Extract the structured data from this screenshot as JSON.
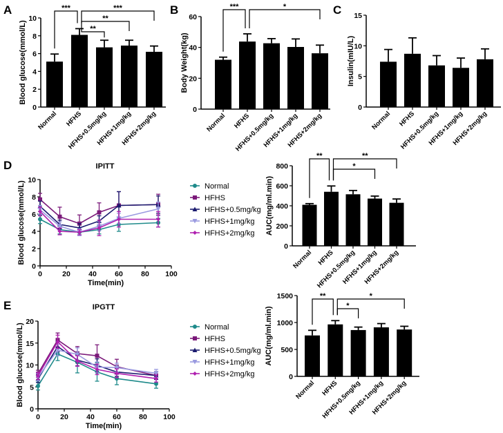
{
  "chart_data": [
    {
      "panel": "A",
      "type": "bar",
      "ylabel": "Blood glucose(mmol/L)",
      "ylim": [
        0,
        10
      ],
      "yticks": [
        0,
        2,
        4,
        6,
        8,
        10
      ],
      "categories": [
        "Normal",
        "HFHS",
        "HFHS+0.5mg/kg",
        "HFHS+1mg/kg",
        "HFHS+2mg/kg"
      ],
      "values": [
        5.1,
        8.1,
        6.7,
        6.9,
        6.2
      ],
      "errors": [
        0.85,
        0.7,
        0.8,
        0.6,
        0.65
      ],
      "significance": [
        {
          "from": 0,
          "to": 1,
          "label": "***"
        },
        {
          "from": 1,
          "to": 2,
          "label": "**"
        },
        {
          "from": 1,
          "to": 3,
          "label": "**"
        },
        {
          "from": 1,
          "to": 4,
          "label": "***"
        }
      ]
    },
    {
      "panel": "B",
      "type": "bar",
      "ylabel": "Body Weight(kg)",
      "ylim": [
        0,
        60
      ],
      "yticks": [
        0,
        20,
        40,
        60
      ],
      "categories": [
        "Normal",
        "HFHS",
        "HFHS+0.5mg/kg",
        "HFHS+1mg/kg",
        "HFHS+2mg/kg"
      ],
      "values": [
        32,
        43.8,
        42.7,
        40.3,
        36.2
      ],
      "errors": [
        1.7,
        5,
        3,
        5.2,
        5.3
      ],
      "significance": [
        {
          "from": 0,
          "to": 1,
          "label": "***"
        },
        {
          "from": 1,
          "to": 4,
          "label": "*"
        }
      ]
    },
    {
      "panel": "C",
      "type": "bar",
      "ylabel": "Insulin(mIU/L)",
      "ylim": [
        0,
        15
      ],
      "yticks": [
        0,
        5,
        10,
        15
      ],
      "categories": [
        "Normal",
        "HFHS",
        "HFHS+0.5mg/kg",
        "HFHS+1mg/kg",
        "HFHS+2mg/kg"
      ],
      "values": [
        7.4,
        8.7,
        6.8,
        6.4,
        7.8
      ],
      "errors": [
        2,
        2.6,
        1.6,
        1.6,
        1.7
      ],
      "significance": []
    },
    {
      "panel": "D",
      "type": "line",
      "title": "IPITT",
      "xlabel": "Time(min)",
      "ylabel": "Blood glucose(mmol/L)",
      "xlim": [
        0,
        100
      ],
      "xticks": [
        0,
        20,
        40,
        60,
        80,
        100
      ],
      "ylim": [
        0,
        10
      ],
      "yticks": [
        0,
        2,
        4,
        6,
        8,
        10
      ],
      "x": [
        0,
        15,
        30,
        45,
        60,
        90
      ],
      "legend": "right",
      "series": [
        {
          "name": "Normal",
          "color": "#1e8a8a",
          "marker": "circle",
          "values": [
            5.4,
            4.2,
            3.9,
            4.2,
            4.8,
            5.0
          ],
          "errors": [
            0.5,
            0.5,
            0.3,
            0.5,
            0.8,
            0.5
          ]
        },
        {
          "name": "HFHS",
          "color": "#7b1a7a",
          "marker": "square",
          "values": [
            7.7,
            5.7,
            4.9,
            6.2,
            7.0,
            7.1
          ],
          "errors": [
            0.7,
            1.1,
            1.0,
            1.1,
            1.6,
            1.2
          ]
        },
        {
          "name": "HFHS+0.5mg/kg",
          "color": "#1a1a6e",
          "marker": "triangle-up",
          "values": [
            6.9,
            4.8,
            4.4,
            5.2,
            7.0,
            7.1
          ],
          "errors": [
            0.6,
            0.5,
            0.5,
            0.6,
            1.6,
            1.0
          ]
        },
        {
          "name": "HFHS+1mg/kg",
          "color": "#9a9ae0",
          "marker": "triangle-down",
          "values": [
            6.5,
            4.6,
            3.9,
            4.6,
            5.5,
            6.6
          ],
          "errors": [
            0.5,
            0.5,
            0.4,
            0.5,
            0.6,
            0.8
          ]
        },
        {
          "name": "HFHS+2mg/kg",
          "color": "#b020b0",
          "marker": "diamond",
          "values": [
            6.3,
            4.0,
            3.9,
            4.4,
            5.4,
            5.4
          ],
          "errors": [
            0.5,
            0.4,
            0.3,
            0.9,
            0.9,
            0.9
          ]
        }
      ]
    },
    {
      "panel": "",
      "type": "bar",
      "ylabel": "AUC(mg/ml.min)",
      "ylim": [
        0,
        800
      ],
      "yticks": [
        0,
        200,
        400,
        600,
        800
      ],
      "categories": [
        "Normal",
        "HFHS",
        "HFHS+0.5mg/kg",
        "HFHS+1mg/kg",
        "HFHS+2mg/kg"
      ],
      "values": [
        410,
        540,
        515,
        472,
        430
      ],
      "errors": [
        12,
        58,
        38,
        25,
        38
      ],
      "significance": [
        {
          "from": 0,
          "to": 1,
          "label": "**"
        },
        {
          "from": 1,
          "to": 3,
          "label": "*"
        },
        {
          "from": 1,
          "to": 4,
          "label": "**"
        }
      ]
    },
    {
      "panel": "E",
      "type": "line",
      "title": "IPGTT",
      "xlabel": "Time(min)",
      "ylabel": "Blood glucose(mmol/L)",
      "xlim": [
        0,
        100
      ],
      "xticks": [
        0,
        20,
        40,
        60,
        80,
        100
      ],
      "ylim": [
        0,
        20
      ],
      "yticks": [
        0,
        5,
        10,
        15,
        20
      ],
      "x": [
        0,
        15,
        30,
        45,
        60,
        90
      ],
      "legend": "right",
      "series": [
        {
          "name": "Normal",
          "color": "#1e8a8a",
          "marker": "circle",
          "values": [
            5.2,
            12.5,
            10.6,
            8.4,
            6.9,
            5.7
          ],
          "errors": [
            0.9,
            1.5,
            2.4,
            2.1,
            1.4,
            1.0
          ]
        },
        {
          "name": "HFHS",
          "color": "#7b1a7a",
          "marker": "square",
          "values": [
            8.0,
            15.7,
            12.6,
            12.1,
            9.6,
            7.6
          ],
          "errors": [
            0.8,
            1.6,
            1.6,
            2.5,
            1.7,
            0.8
          ]
        },
        {
          "name": "HFHS+0.5mg/kg",
          "color": "#1a1a6e",
          "marker": "triangle-up",
          "values": [
            6.8,
            14.2,
            11.1,
            9.9,
            8.4,
            7.6
          ],
          "errors": [
            0.8,
            1.2,
            1.3,
            1.5,
            1.0,
            0.9
          ]
        },
        {
          "name": "HFHS+1mg/kg",
          "color": "#9a9ae0",
          "marker": "triangle-down",
          "values": [
            7.2,
            13.4,
            12.4,
            9.5,
            9.4,
            8.1
          ],
          "errors": [
            0.8,
            1.3,
            1.5,
            1.2,
            1.0,
            0.9
          ]
        },
        {
          "name": "HFHS+2mg/kg",
          "color": "#b020b0",
          "marker": "diamond",
          "values": [
            7.5,
            15.3,
            10.9,
            9.0,
            8.1,
            6.9
          ],
          "errors": [
            0.8,
            1.5,
            1.2,
            1.2,
            1.0,
            0.8
          ]
        }
      ]
    },
    {
      "panel": "",
      "type": "bar",
      "ylabel": "AUC(mg/ml.min)",
      "ylim": [
        0,
        1500
      ],
      "yticks": [
        0,
        500,
        1000,
        1500
      ],
      "categories": [
        "Normal",
        "HFHS",
        "HFHS+0.5mg/kg",
        "HFHS+1mg/kg",
        "HFHS+2mg/kg"
      ],
      "values": [
        760,
        965,
        860,
        910,
        870
      ],
      "errors": [
        95,
        70,
        55,
        70,
        60
      ],
      "significance": [
        {
          "from": 0,
          "to": 1,
          "label": "**"
        },
        {
          "from": 1,
          "to": 2,
          "label": "*"
        },
        {
          "from": 1,
          "to": 4,
          "label": "*"
        }
      ]
    }
  ]
}
